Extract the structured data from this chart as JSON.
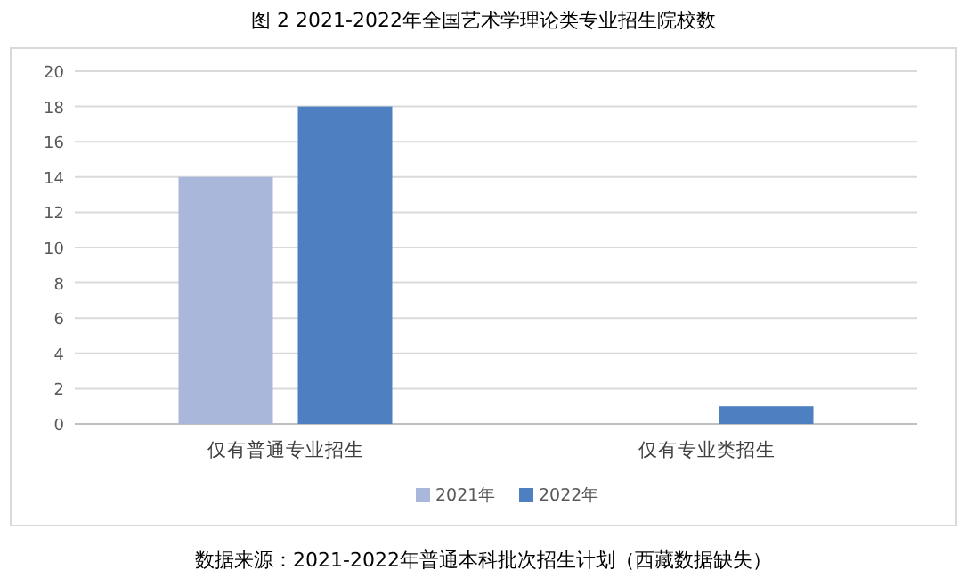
{
  "chart_data": {
    "type": "bar",
    "title": "图 2 2021-2022年全国艺术学理论类专业招生院校数",
    "categories": [
      "仅有普通专业招生",
      "仅有专业类招生"
    ],
    "series": [
      {
        "name": "2021年",
        "color": "#a9b8da",
        "values": [
          14,
          0
        ]
      },
      {
        "name": "2022年",
        "color": "#4e7fc0",
        "values": [
          18,
          1
        ]
      }
    ],
    "ylim": [
      0,
      20
    ],
    "yticks": [
      0,
      2,
      4,
      6,
      8,
      10,
      12,
      14,
      16,
      18,
      20
    ],
    "grid": "y",
    "legend": "bottom",
    "annotations": [
      "数据来源：2021-2022年普通本科批次招生计划（西藏数据缺失）"
    ]
  }
}
